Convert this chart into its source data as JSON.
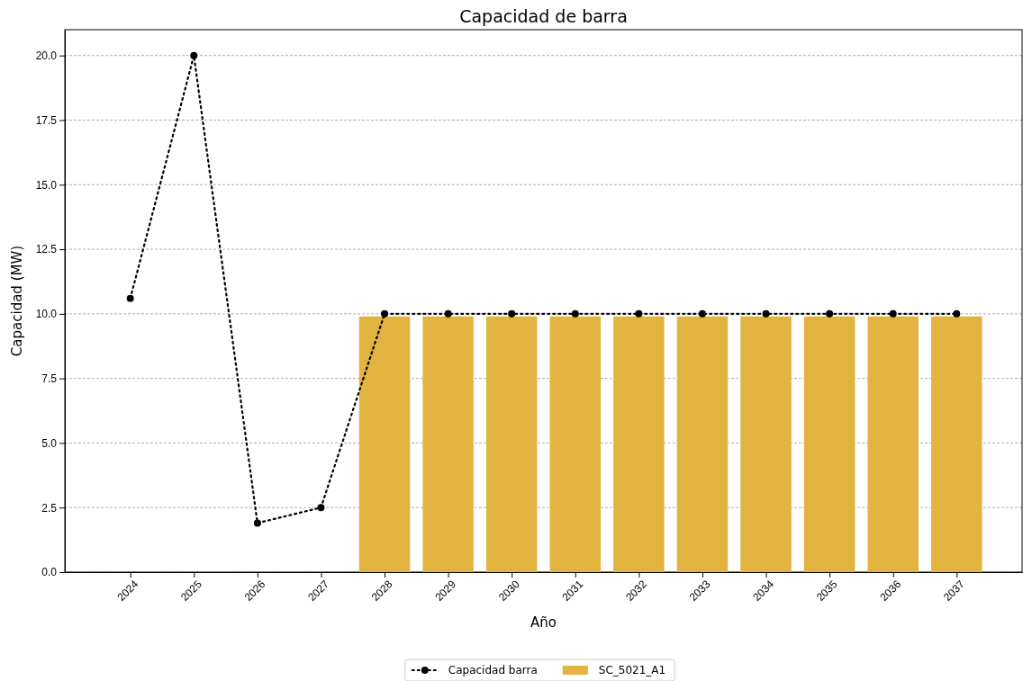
{
  "chart_data": {
    "type": "bar",
    "title": "Capacidad de barra",
    "xlabel": "Año",
    "ylabel": "Capacidad (MW)",
    "categories": [
      "2024",
      "2025",
      "2026",
      "2027",
      "2028",
      "2029",
      "2030",
      "2031",
      "2032",
      "2033",
      "2034",
      "2035",
      "2036",
      "2037"
    ],
    "series": [
      {
        "name": "Capacidad barra",
        "type": "line",
        "color": "#000000",
        "marker": "circle",
        "line_style": "dotted",
        "values": [
          10.6,
          20.0,
          1.9,
          2.5,
          10.0,
          10.0,
          10.0,
          10.0,
          10.0,
          10.0,
          10.0,
          10.0,
          10.0,
          10.0
        ]
      },
      {
        "name": "SC_5021_A1",
        "color": "#e3b33f",
        "values": [
          null,
          null,
          null,
          null,
          9.9,
          9.9,
          9.9,
          9.9,
          9.9,
          9.9,
          9.9,
          9.9,
          9.9,
          9.9
        ]
      }
    ],
    "ylim": [
      0,
      21
    ],
    "yticks": [
      {
        "value": 0,
        "label": "0.0"
      },
      {
        "value": 2.5,
        "label": "2.5"
      },
      {
        "value": 5,
        "label": "5.0"
      },
      {
        "value": 7.5,
        "label": "7.5"
      },
      {
        "value": 10,
        "label": "10.0"
      },
      {
        "value": 12.5,
        "label": "12.5"
      },
      {
        "value": 15,
        "label": "15.0"
      },
      {
        "value": 17.5,
        "label": "17.5"
      },
      {
        "value": 20,
        "label": "20.0"
      }
    ],
    "grid": "y",
    "legend": "bottom"
  }
}
